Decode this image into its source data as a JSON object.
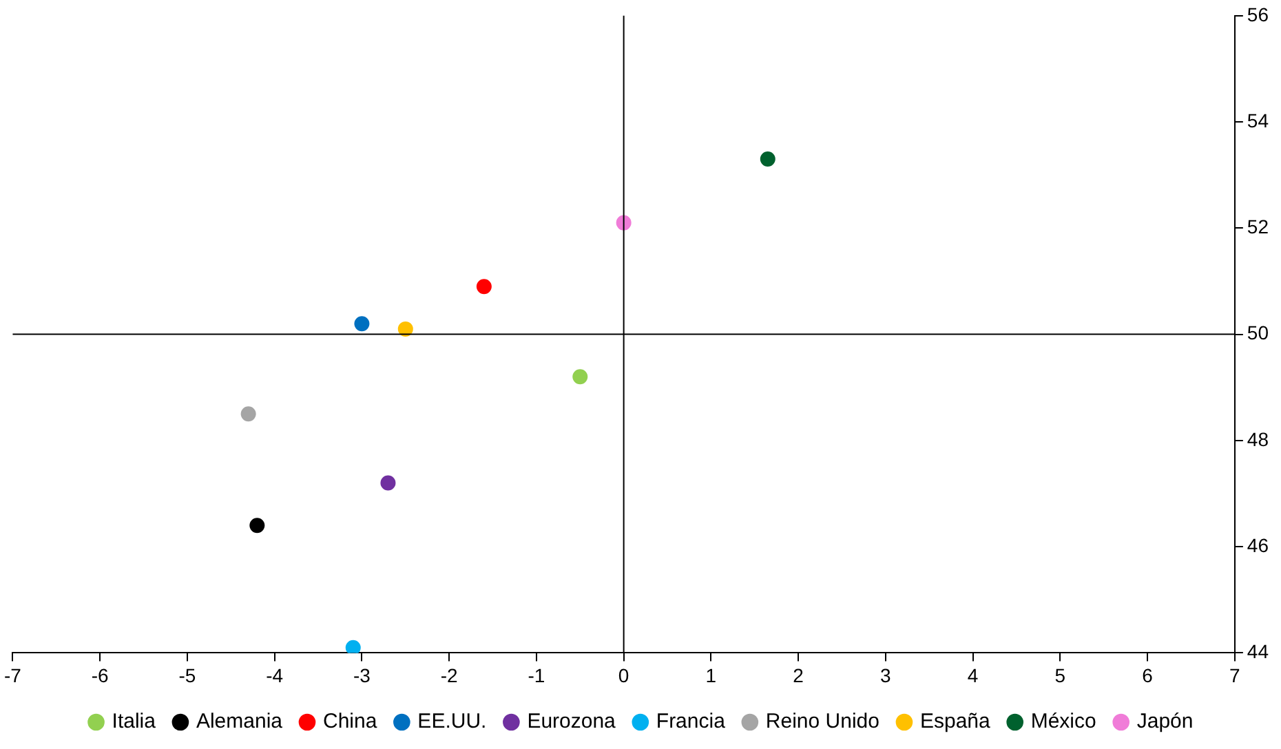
{
  "chart_data": {
    "type": "scatter",
    "xlim": [
      -7,
      7
    ],
    "xticks": [
      -7,
      -6,
      -5,
      -4,
      -3,
      -2,
      -1,
      0,
      1,
      2,
      3,
      4,
      5,
      6,
      7
    ],
    "ylim": [
      44,
      56
    ],
    "yticks": [
      44,
      46,
      48,
      50,
      52,
      54,
      56
    ],
    "grid": false,
    "legend": "bottom",
    "marker": "circle",
    "ref_lines": [
      {
        "axis": "x",
        "value": 0,
        "color": "#000000"
      },
      {
        "axis": "y",
        "value": 50,
        "color": "#000000"
      }
    ],
    "series": [
      {
        "name": "Italia",
        "color": "#92d050",
        "x": [
          -0.5
        ],
        "values": [
          49.2
        ]
      },
      {
        "name": "Alemania",
        "color": "#000000",
        "x": [
          -4.2
        ],
        "values": [
          46.4
        ]
      },
      {
        "name": "China",
        "color": "#ff0000",
        "x": [
          -1.6
        ],
        "values": [
          50.9
        ]
      },
      {
        "name": "EE.UU.",
        "color": "#0070c0",
        "x": [
          -3.0
        ],
        "values": [
          50.2
        ]
      },
      {
        "name": "Eurozona",
        "color": "#7030a0",
        "x": [
          -2.7
        ],
        "values": [
          47.2
        ]
      },
      {
        "name": "Francia",
        "color": "#00b0f0",
        "x": [
          -3.1
        ],
        "values": [
          44.1
        ]
      },
      {
        "name": "Reino Unido",
        "color": "#a5a5a5",
        "x": [
          -4.3
        ],
        "values": [
          48.5
        ]
      },
      {
        "name": "España",
        "color": "#ffc000",
        "x": [
          -2.5
        ],
        "values": [
          50.1
        ]
      },
      {
        "name": "México",
        "color": "#00612e",
        "x": [
          1.65
        ],
        "values": [
          53.3
        ]
      },
      {
        "name": "Japón",
        "color": "#f07cd8",
        "x": [
          0
        ],
        "values": [
          52.1
        ]
      }
    ]
  }
}
